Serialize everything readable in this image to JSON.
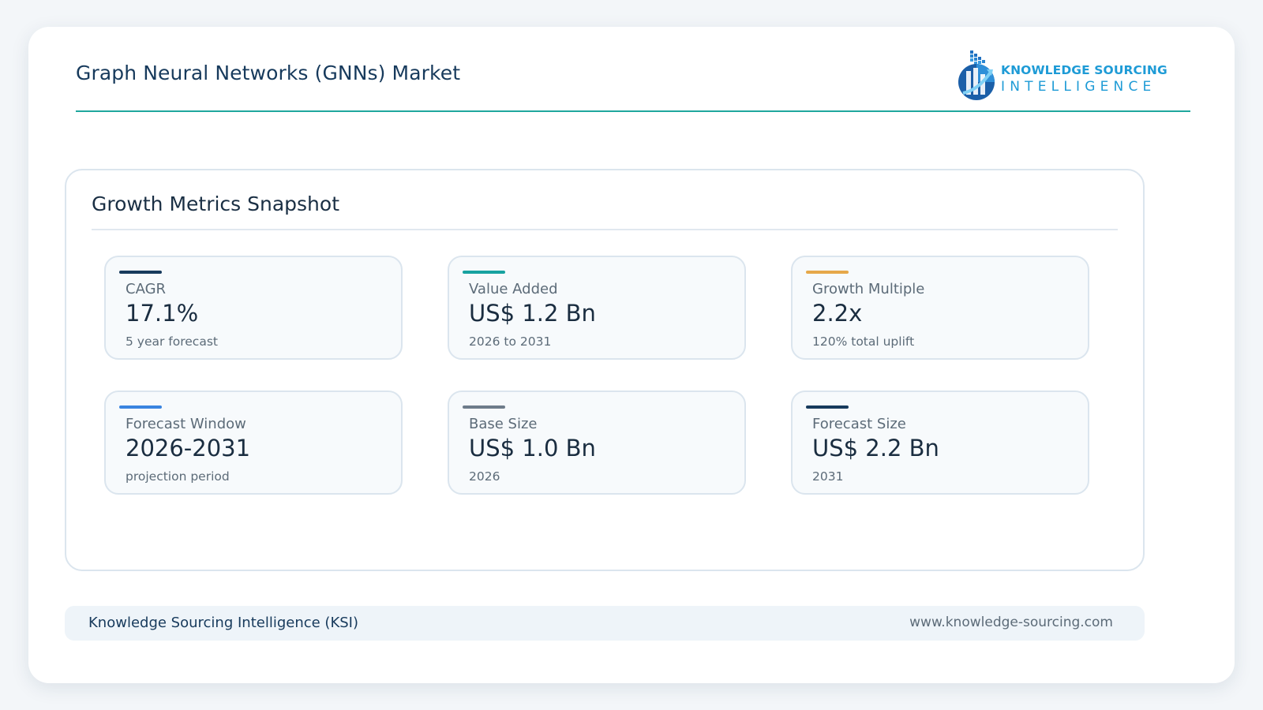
{
  "header": {
    "title": "Graph Neural Networks (GNNs) Market",
    "logo": {
      "line1": "KNOWLEDGE SOURCING",
      "line2": "INTELLIGENCE",
      "icon": "ksi-logo-icon"
    }
  },
  "panel": {
    "title": "Growth Metrics Snapshot",
    "metrics": [
      {
        "label": "CAGR",
        "value": "17.1%",
        "sub": "5 year forecast",
        "accent": "#173a5c"
      },
      {
        "label": "Value Added",
        "value": "US$ 1.2 Bn",
        "sub": "2026 to 2031",
        "accent": "#17a2a0"
      },
      {
        "label": "Growth Multiple",
        "value": "2.2x",
        "sub": "120% total uplift",
        "accent": "#e6a84a"
      },
      {
        "label": "Forecast Window",
        "value": "2026-2031",
        "sub": "projection period",
        "accent": "#3a84e0"
      },
      {
        "label": "Base Size",
        "value": "US$ 1.0 Bn",
        "sub": "2026",
        "accent": "#6e7c8a"
      },
      {
        "label": "Forecast Size",
        "value": "US$ 2.2 Bn",
        "sub": "2031",
        "accent": "#173a5c"
      }
    ]
  },
  "footer": {
    "left": "Knowledge Sourcing Intelligence (KSI)",
    "right": "www.knowledge-sourcing.com"
  }
}
